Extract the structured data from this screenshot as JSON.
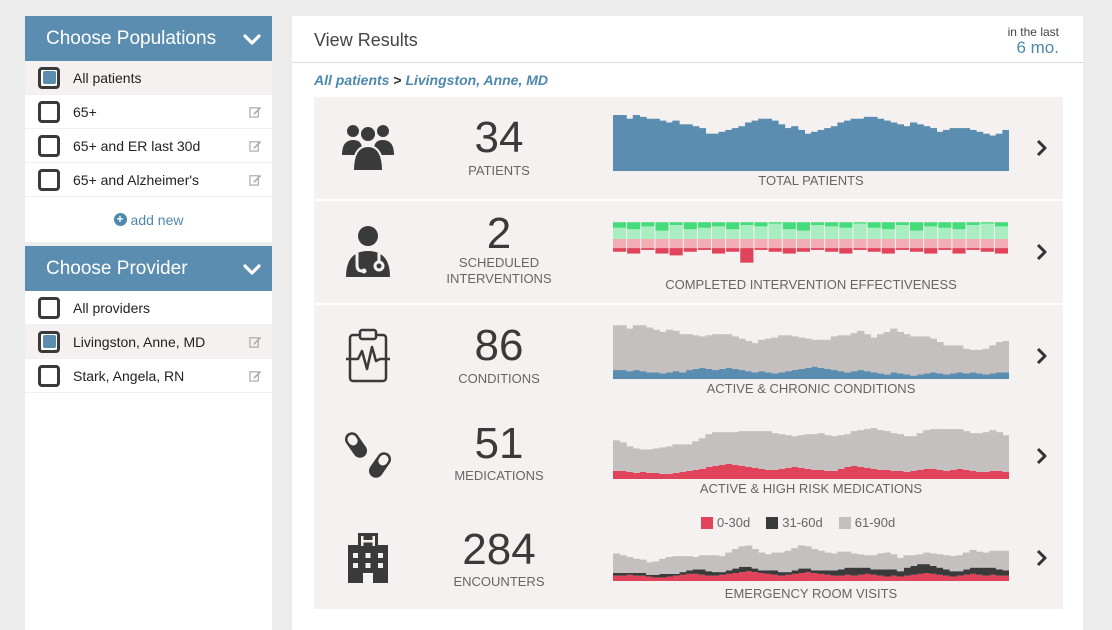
{
  "sidebar": {
    "populations": {
      "title": "Choose Populations",
      "items": [
        {
          "label": "All patients",
          "checked": true,
          "editable": false
        },
        {
          "label": "65+",
          "checked": false,
          "editable": true
        },
        {
          "label": "65+ and ER last 30d",
          "checked": false,
          "editable": true
        },
        {
          "label": "65+ and Alzheimer's",
          "checked": false,
          "editable": true
        }
      ],
      "add_new_label": "add new"
    },
    "provider": {
      "title": "Choose Provider",
      "items": [
        {
          "label": "All providers",
          "checked": false,
          "editable": false
        },
        {
          "label": "Livingston, Anne, MD",
          "checked": true,
          "editable": true
        },
        {
          "label": "Stark, Angela, RN",
          "checked": false,
          "editable": true
        }
      ]
    }
  },
  "main": {
    "title": "View Results",
    "period_prefix": "in the last",
    "period_value": "6 mo.",
    "breadcrumb": {
      "population": "All patients",
      "separator": ">",
      "provider": "Livingston, Anne, MD"
    }
  },
  "metrics": [
    {
      "icon": "patients-group-icon",
      "value": "34",
      "label": "PATIENTS",
      "chart_label": "TOTAL PATIENTS"
    },
    {
      "icon": "doctor-icon",
      "value": "2",
      "label": "SCHEDULED INTERVENTIONS",
      "chart_label": "COMPLETED INTERVENTION EFFECTIVENESS"
    },
    {
      "icon": "clipboard-heartbeat-icon",
      "value": "86",
      "label": "CONDITIONS",
      "chart_label": "ACTIVE & CHRONIC CONDITIONS"
    },
    {
      "icon": "pills-icon",
      "value": "51",
      "label": "MEDICATIONS",
      "chart_label": "ACTIVE & HIGH RISK MEDICATIONS"
    },
    {
      "icon": "hospital-icon",
      "value": "284",
      "label": "ENCOUNTERS",
      "chart_label": "EMERGENCY ROOM VISITS"
    }
  ],
  "legend": [
    {
      "label": "0-30d",
      "color": "#e0435a"
    },
    {
      "label": "31-60d",
      "color": "#3a3a3a"
    },
    {
      "label": "61-90d",
      "color": "#c5c0c0"
    }
  ],
  "colors": {
    "accent": "#5b8db0",
    "link": "#4e88ad",
    "gray_fill": "#c5c0c0",
    "red": "#e0435a",
    "dark": "#3a3a3a",
    "green_dark": "#44dc7a",
    "green_light": "#a8eec0",
    "red_light": "#f2aeb4"
  },
  "chart_data": [
    {
      "type": "area",
      "title": "TOTAL PATIENTS",
      "series": [
        {
          "values": [
            30,
            30,
            28,
            30,
            29,
            28,
            28,
            27,
            26,
            27,
            25,
            25,
            24,
            23,
            20,
            20,
            21,
            22,
            23,
            24,
            26,
            27,
            28,
            28,
            27,
            25,
            23,
            24,
            22,
            20,
            21,
            22,
            23,
            24,
            26,
            27,
            28,
            28,
            29,
            29,
            28,
            27,
            26,
            25,
            24,
            26,
            25,
            24,
            23,
            21,
            22,
            23,
            23,
            23,
            22,
            21,
            20,
            19,
            20,
            22
          ]
        }
      ]
    },
    {
      "type": "bar",
      "title": "COMPLETED INTERVENTION EFFECTIVENESS",
      "series": [
        {
          "values": [
            4,
            5,
            3,
            6,
            2,
            5,
            4,
            3,
            5,
            2,
            3,
            1,
            5,
            6,
            2,
            3,
            4,
            1,
            4,
            5,
            2,
            6,
            3,
            4,
            5,
            2,
            1,
            3
          ]
        },
        {
          "values": [
            8,
            7,
            9,
            6,
            10,
            7,
            8,
            9,
            7,
            10,
            9,
            11,
            7,
            6,
            10,
            9,
            8,
            11,
            8,
            7,
            10,
            6,
            9,
            8,
            7,
            10,
            11,
            9
          ]
        },
        {
          "values": [
            5,
            5,
            5,
            5,
            5,
            5,
            5,
            5,
            5,
            5,
            5,
            5,
            5,
            5,
            5,
            5,
            5,
            5,
            5,
            5,
            5,
            5,
            5,
            5,
            5,
            5,
            5,
            5
          ]
        },
        {
          "values": [
            2,
            3,
            1,
            3,
            4,
            2,
            1,
            3,
            2,
            8,
            1,
            2,
            3,
            2,
            1,
            2,
            3,
            1,
            2,
            3,
            1,
            2,
            3,
            1,
            3,
            1,
            2,
            3
          ]
        }
      ]
    },
    {
      "type": "area",
      "title": "ACTIVE & CHRONIC CONDITIONS",
      "series": [
        {
          "values": [
            8,
            8,
            7,
            8,
            7,
            6,
            6,
            5,
            6,
            7,
            6,
            8,
            9,
            10,
            9,
            8,
            9,
            10,
            9,
            8,
            7,
            6,
            7,
            6,
            5,
            6,
            7,
            8,
            9,
            10,
            11,
            10,
            9,
            8,
            7,
            6,
            7,
            8,
            7,
            6,
            5,
            4,
            6,
            5,
            4,
            3,
            4,
            5,
            6,
            5,
            4,
            5,
            6,
            5,
            6,
            5,
            4,
            5,
            6,
            6
          ]
        },
        {
          "values": [
            40,
            40,
            38,
            40,
            41,
            40,
            38,
            37,
            38,
            36,
            34,
            32,
            30,
            28,
            30,
            32,
            31,
            30,
            29,
            28,
            27,
            26,
            28,
            30,
            32,
            33,
            32,
            30,
            28,
            26,
            24,
            25,
            26,
            30,
            32,
            33,
            34,
            35,
            33,
            31,
            35,
            38,
            39,
            37,
            36,
            35,
            34,
            33,
            30,
            28,
            26,
            25,
            24,
            22,
            20,
            21,
            23,
            25,
            27,
            28
          ]
        }
      ]
    },
    {
      "type": "area",
      "title": "ACTIVE & HIGH RISK MEDICATIONS",
      "series": [
        {
          "values": [
            8,
            8,
            7,
            6,
            7,
            6,
            6,
            5,
            5,
            6,
            7,
            8,
            9,
            10,
            12,
            13,
            14,
            15,
            14,
            13,
            12,
            11,
            10,
            9,
            9,
            10,
            11,
            12,
            11,
            10,
            9,
            9,
            8,
            8,
            10,
            12,
            13,
            12,
            11,
            10,
            9,
            9,
            8,
            8,
            7,
            8,
            9,
            10,
            10,
            9,
            8,
            9,
            10,
            9,
            8,
            7,
            7,
            8,
            8,
            7
          ]
        },
        {
          "values": [
            30,
            28,
            25,
            24,
            22,
            23,
            24,
            26,
            27,
            28,
            27,
            26,
            28,
            30,
            32,
            33,
            32,
            31,
            32,
            34,
            35,
            36,
            37,
            38,
            36,
            34,
            32,
            30,
            32,
            34,
            35,
            36,
            35,
            34,
            33,
            32,
            34,
            36,
            38,
            40,
            39,
            38,
            37,
            36,
            35,
            34,
            36,
            38,
            39,
            40,
            41,
            40,
            39,
            38,
            37,
            38,
            39,
            40,
            38,
            36
          ]
        }
      ]
    },
    {
      "type": "area",
      "title": "EMERGENCY ROOM VISITS",
      "series": [
        {
          "name": "0-30d",
          "values": [
            6,
            6,
            7,
            6,
            6,
            5,
            4,
            4,
            5,
            6,
            7,
            8,
            8,
            7,
            6,
            6,
            7,
            8,
            9,
            10,
            11,
            10,
            9,
            8,
            7,
            6,
            7,
            8,
            9,
            10,
            9,
            8,
            7,
            6,
            6,
            7,
            6,
            7,
            8,
            7,
            6,
            5,
            6,
            5,
            6,
            7,
            8,
            9,
            8,
            7,
            6,
            5,
            6,
            7,
            8,
            7,
            6,
            7,
            6,
            6
          ]
        },
        {
          "name": "31-60d",
          "values": [
            3,
            3,
            2,
            3,
            3,
            2,
            3,
            4,
            3,
            2,
            3,
            4,
            5,
            6,
            5,
            4,
            3,
            4,
            5,
            6,
            5,
            4,
            3,
            4,
            5,
            4,
            3,
            4,
            5,
            4,
            3,
            4,
            5,
            6,
            7,
            8,
            9,
            8,
            7,
            6,
            7,
            8,
            7,
            6,
            9,
            10,
            11,
            10,
            9,
            8,
            7,
            6,
            5,
            6,
            7,
            8,
            9,
            8,
            7,
            6
          ]
        },
        {
          "name": "61-90d",
          "values": [
            22,
            20,
            18,
            16,
            15,
            14,
            15,
            17,
            19,
            20,
            18,
            16,
            14,
            16,
            18,
            19,
            18,
            20,
            22,
            23,
            24,
            22,
            20,
            18,
            20,
            22,
            24,
            25,
            26,
            25,
            24,
            22,
            20,
            19,
            20,
            18,
            16,
            15,
            14,
            16,
            18,
            19,
            17,
            15,
            14,
            12,
            11,
            13,
            14,
            15,
            16,
            17,
            18,
            19,
            20,
            18,
            17,
            19,
            21,
            22
          ]
        }
      ]
    }
  ]
}
